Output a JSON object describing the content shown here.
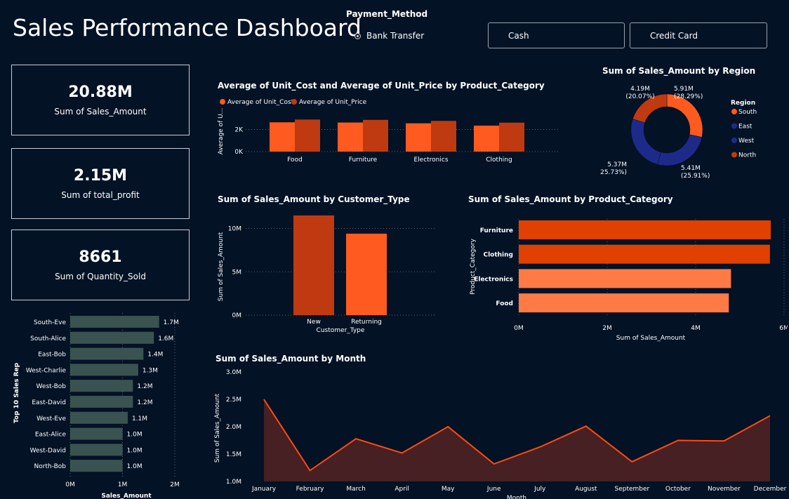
{
  "page": {
    "title": "Sales Performance Dashboard"
  },
  "slicer": {
    "title": "Payment_Method",
    "radio_label": "Bank Transfer",
    "buttons": [
      "Cash",
      "Credit Card"
    ]
  },
  "kpis": [
    {
      "value": "20.88M",
      "label": "Sum of Sales_Amount"
    },
    {
      "value": "2.15M",
      "label": "Sum of total_profit"
    },
    {
      "value": "8661",
      "label": "Sum of Quantity_Sold"
    }
  ],
  "colors": {
    "orange": "#ff5a1f",
    "dark_orange": "#bf3a10",
    "navy": "#1e2a8a",
    "teal_bar": "#3a5350",
    "light_orange": "#ff7a45",
    "area_fill": "#4a2222"
  },
  "chart_data": [
    {
      "type": "bar",
      "title": "Average of Unit_Cost and Average of Unit_Price by Product_Category",
      "ylabel": "Average of U...",
      "categories": [
        "Food",
        "Furniture",
        "Electronics",
        "Clothing"
      ],
      "series": [
        {
          "name": "Average of Unit_Cost",
          "values": [
            2650,
            2630,
            2560,
            2350
          ]
        },
        {
          "name": "Average of Unit_Price",
          "values": [
            2900,
            2870,
            2780,
            2620
          ]
        }
      ],
      "ylim": [
        0,
        4000
      ],
      "yticks": [
        0,
        2000
      ],
      "ytick_labels": [
        "0K",
        "2K"
      ]
    },
    {
      "type": "pie",
      "title": "Sum of Sales_Amount by Region",
      "legend_title": "Region",
      "categories": [
        "South",
        "East",
        "West",
        "North"
      ],
      "values": [
        5.91,
        5.41,
        5.37,
        4.19
      ],
      "value_labels": [
        "5.91M",
        "5.41M",
        "5.37M",
        "4.19M"
      ],
      "pct_labels": [
        "(28.29%)",
        "(25.91%)",
        "(25.73%)",
        "(20.07%)"
      ],
      "legend": "right"
    },
    {
      "type": "bar",
      "title": "Sum of Sales_Amount by Customer_Type",
      "xlabel": "Customer_Type",
      "ylabel": "Sum of Sales_Amount",
      "categories": [
        "New",
        "Returning"
      ],
      "values": [
        11.5,
        9.4
      ],
      "ylim": [
        0,
        11.5
      ],
      "yticks": [
        0,
        5,
        10
      ],
      "ytick_labels": [
        "0M",
        "5M",
        "10M"
      ]
    },
    {
      "type": "bar",
      "orientation": "horizontal",
      "title": "Sum of Sales_Amount by Product_Category",
      "xlabel": "Sum of Sales_Amount",
      "ylabel": "Product_Category",
      "categories": [
        "Furniture",
        "Clothing",
        "Electronics",
        "Food"
      ],
      "values": [
        5.7,
        5.68,
        4.8,
        4.75
      ],
      "xlim": [
        0,
        6
      ],
      "xticks": [
        0,
        2,
        4,
        6
      ],
      "xtick_labels": [
        "0M",
        "2M",
        "4M",
        "6M"
      ]
    },
    {
      "type": "bar",
      "orientation": "horizontal",
      "xlabel": "Sales_Amount",
      "ylabel": "Top 10 Sales Rep",
      "categories": [
        "South-Eve",
        "South-Alice",
        "East-Bob",
        "West-Charlie",
        "West-Bob",
        "East-David",
        "West-Eve",
        "East-Alice",
        "West-David",
        "North-Bob"
      ],
      "values": [
        1.7,
        1.6,
        1.4,
        1.3,
        1.2,
        1.2,
        1.1,
        1.0,
        1.0,
        1.0
      ],
      "value_labels": [
        "1.7M",
        "1.6M",
        "1.4M",
        "1.3M",
        "1.2M",
        "1.2M",
        "1.1M",
        "1.0M",
        "1.0M",
        "1.0M"
      ],
      "xlim": [
        0,
        2
      ],
      "xticks": [
        0,
        1,
        2
      ],
      "xtick_labels": [
        "0M",
        "1M",
        "2M"
      ]
    },
    {
      "type": "area",
      "title": "Sum of Sales_Amount by Month",
      "xlabel": "Month",
      "ylabel": "Sum of Sales_Amount",
      "categories": [
        "January",
        "February",
        "March",
        "April",
        "May",
        "June",
        "July",
        "August",
        "September",
        "October",
        "November",
        "December"
      ],
      "values": [
        2.5,
        1.2,
        1.78,
        1.52,
        2.0,
        1.32,
        1.63,
        2.01,
        1.36,
        1.75,
        1.74,
        2.2
      ],
      "ylim": [
        1.0,
        3.0
      ],
      "yticks": [
        1.0,
        1.5,
        2.0,
        2.5,
        3.0
      ],
      "ytick_labels": [
        "1.0M",
        "1.5M",
        "2.0M",
        "2.5M",
        "3.0M"
      ]
    }
  ]
}
